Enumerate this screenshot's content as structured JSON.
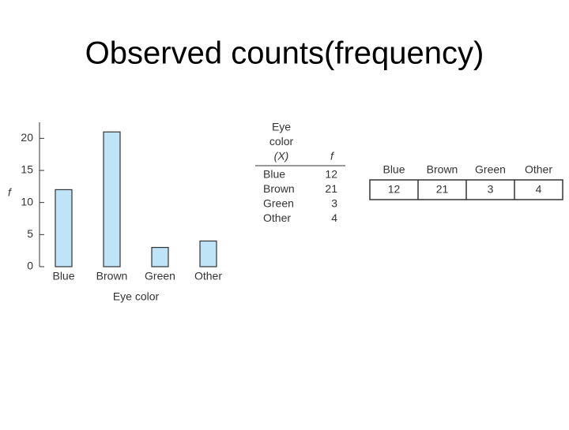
{
  "title": "Observed counts(frequency)",
  "chart_data": {
    "type": "bar",
    "categories": [
      "Blue",
      "Brown",
      "Green",
      "Other"
    ],
    "values": [
      12,
      21,
      3,
      4
    ],
    "color": "#bfe3f7",
    "ylim": [
      0,
      22.5
    ],
    "yticks": [
      0,
      5,
      10,
      15,
      20
    ],
    "x_label": "Eye color",
    "y_label": "f"
  },
  "freq_table": {
    "header": [
      [
        "Eye",
        "color",
        "(X)"
      ],
      "f"
    ],
    "rows": [
      [
        "Blue",
        12
      ],
      [
        "Brown",
        21
      ],
      [
        "Green",
        3
      ],
      [
        "Other",
        4
      ]
    ]
  },
  "row_table": {
    "header": [
      "Blue",
      "Brown",
      "Green",
      "Other"
    ],
    "values": [
      12,
      21,
      3,
      4
    ]
  }
}
